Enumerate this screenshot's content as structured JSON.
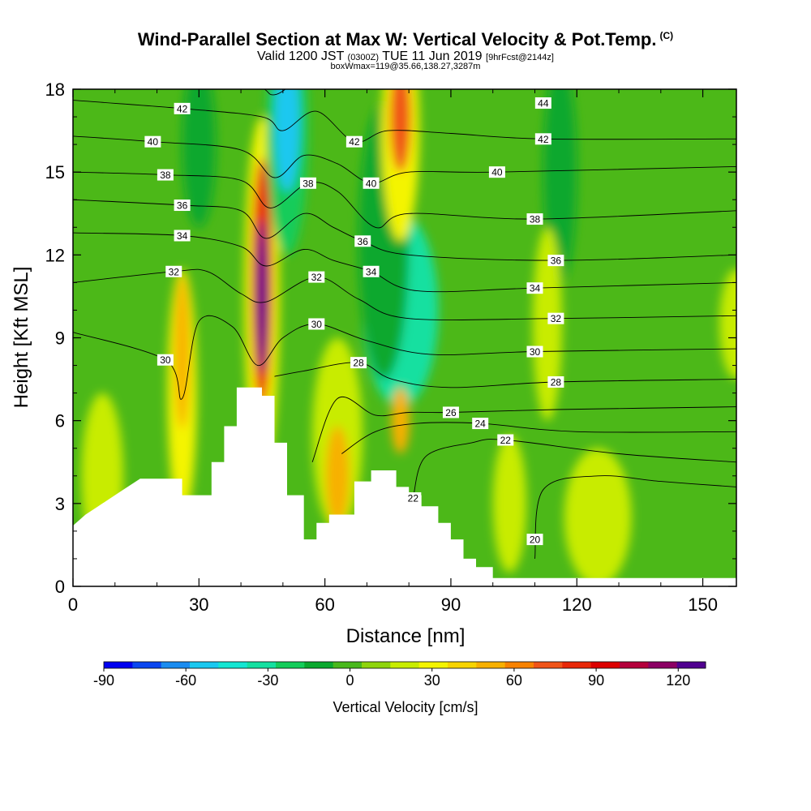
{
  "title": {
    "main": "Wind-Parallel Section at Max W: Vertical Velocity & Pot.Temp.",
    "corner": "(C)",
    "valid_prefix": "Valid 1200 JST",
    "valid_utc": "(0300Z)",
    "valid_date": "TUE 11 Jun 2019",
    "forecast": "[9hrFcst@2144z]",
    "box": "boxWmax=119@35.66,138.27,3287m"
  },
  "colors": {
    "terrain": "#ffffff",
    "base_field": "#4cb818",
    "contour": "#000000"
  },
  "chart_data": {
    "type": "heatmap",
    "xlabel": "Distance [nm]",
    "ylabel": "Height [Kft MSL]",
    "xlim": [
      0,
      158
    ],
    "ylim": [
      0,
      18
    ],
    "x_ticks": [
      0,
      30,
      60,
      90,
      120,
      150
    ],
    "y_ticks": [
      0,
      3,
      6,
      9,
      12,
      15,
      18
    ],
    "terrain_height": [
      [
        0,
        2.2
      ],
      [
        3,
        2.6
      ],
      [
        6,
        2.9
      ],
      [
        9,
        3.2
      ],
      [
        12,
        3.5
      ],
      [
        16,
        3.9
      ],
      [
        26,
        3.9
      ],
      [
        26,
        3.3
      ],
      [
        33,
        3.3
      ],
      [
        33,
        4.5
      ],
      [
        36,
        4.5
      ],
      [
        36,
        5.8
      ],
      [
        39,
        5.8
      ],
      [
        39,
        7.2
      ],
      [
        45,
        7.2
      ],
      [
        45,
        6.9
      ],
      [
        48,
        6.9
      ],
      [
        48,
        5.2
      ],
      [
        51,
        5.2
      ],
      [
        51,
        3.3
      ],
      [
        55,
        3.3
      ],
      [
        55,
        1.7
      ],
      [
        58,
        1.7
      ],
      [
        58,
        2.3
      ],
      [
        61,
        2.3
      ],
      [
        61,
        2.6
      ],
      [
        64,
        2.6
      ],
      [
        64,
        2.6
      ],
      [
        67,
        2.6
      ],
      [
        67,
        3.8
      ],
      [
        71,
        3.8
      ],
      [
        71,
        4.2
      ],
      [
        77,
        4.2
      ],
      [
        77,
        3.6
      ],
      [
        80,
        3.6
      ],
      [
        80,
        3.3
      ],
      [
        83,
        3.3
      ],
      [
        83,
        2.9
      ],
      [
        87,
        2.9
      ],
      [
        87,
        2.3
      ],
      [
        90,
        2.3
      ],
      [
        90,
        1.7
      ],
      [
        93,
        1.7
      ],
      [
        93,
        1.0
      ],
      [
        96,
        1.0
      ],
      [
        96,
        0.7
      ],
      [
        100,
        0.7
      ],
      [
        100,
        0.3
      ],
      [
        158,
        0.3
      ]
    ],
    "vertical_velocity": [
      {
        "x": 45,
        "z": 10.5,
        "dx": 1.3,
        "dz": 2.8,
        "w": 119
      },
      {
        "x": 45,
        "z": 11.0,
        "dx": 2.5,
        "dz": 4.5,
        "w": 70
      },
      {
        "x": 45,
        "z": 10.5,
        "dx": 4.2,
        "dz": 6.5,
        "w": 25
      },
      {
        "x": 78,
        "z": 17.0,
        "dx": 2.5,
        "dz": 2.0,
        "w": 60
      },
      {
        "x": 78,
        "z": 16.5,
        "dx": 4.5,
        "dz": 4.0,
        "w": 25
      },
      {
        "x": 26,
        "z": 8.5,
        "dx": 1.8,
        "dz": 2.8,
        "w": 45
      },
      {
        "x": 26,
        "z": 7.0,
        "dx": 3.5,
        "dz": 4.5,
        "w": 20
      },
      {
        "x": 63,
        "z": 4.0,
        "dx": 2.8,
        "dz": 1.8,
        "w": 40
      },
      {
        "x": 63,
        "z": 5.5,
        "dx": 6.0,
        "dz": 3.5,
        "w": 15
      },
      {
        "x": 78,
        "z": 6.0,
        "dx": 2.2,
        "dz": 1.2,
        "w": 40
      },
      {
        "x": 51,
        "z": 16.8,
        "dx": 3.0,
        "dz": 2.5,
        "w": -60
      },
      {
        "x": 51,
        "z": 16.5,
        "dx": 5.0,
        "dz": 4.5,
        "w": -25
      },
      {
        "x": 78,
        "z": 10.0,
        "dx": 9.0,
        "dz": 3.5,
        "w": -35
      },
      {
        "x": 74,
        "z": 12.5,
        "dx": 6.0,
        "dz": 5.0,
        "w": -18
      },
      {
        "x": 116,
        "z": 15.0,
        "dx": 4.0,
        "dz": 4.0,
        "w": -12
      },
      {
        "x": 30,
        "z": 16.0,
        "dx": 4.0,
        "dz": 3.0,
        "w": -12
      },
      {
        "x": 113,
        "z": 9.5,
        "dx": 3.5,
        "dz": 3.5,
        "w": 15
      },
      {
        "x": 125,
        "z": 2.5,
        "dx": 8.0,
        "dz": 2.5,
        "w": 12
      },
      {
        "x": 104,
        "z": 3.0,
        "dx": 4.0,
        "dz": 2.5,
        "w": 10
      },
      {
        "x": 158,
        "z": 9.5,
        "dx": 4.0,
        "dz": 2.0,
        "w": 10
      },
      {
        "x": 7,
        "z": 4.0,
        "dx": 5.0,
        "dz": 3.0,
        "w": 10
      }
    ],
    "theta_labels": [
      {
        "text": "42",
        "x": 26,
        "y": 17.3
      },
      {
        "text": "40",
        "x": 19,
        "y": 16.1
      },
      {
        "text": "38",
        "x": 22,
        "y": 14.9
      },
      {
        "text": "36",
        "x": 26,
        "y": 13.8
      },
      {
        "text": "34",
        "x": 26,
        "y": 12.7
      },
      {
        "text": "32",
        "x": 24,
        "y": 11.4
      },
      {
        "text": "30",
        "x": 22,
        "y": 8.2
      },
      {
        "text": "38",
        "x": 56,
        "y": 14.6
      },
      {
        "text": "32",
        "x": 58,
        "y": 11.2
      },
      {
        "text": "30",
        "x": 58,
        "y": 9.5
      },
      {
        "text": "42",
        "x": 67,
        "y": 16.1
      },
      {
        "text": "40",
        "x": 71,
        "y": 14.6
      },
      {
        "text": "36",
        "x": 69,
        "y": 12.5
      },
      {
        "text": "34",
        "x": 71,
        "y": 11.4
      },
      {
        "text": "28",
        "x": 68,
        "y": 8.1
      },
      {
        "text": "44",
        "x": 112,
        "y": 17.5
      },
      {
        "text": "42",
        "x": 112,
        "y": 16.2
      },
      {
        "text": "40",
        "x": 101,
        "y": 15.0
      },
      {
        "text": "38",
        "x": 110,
        "y": 13.3
      },
      {
        "text": "36",
        "x": 115,
        "y": 11.8
      },
      {
        "text": "34",
        "x": 110,
        "y": 10.8
      },
      {
        "text": "32",
        "x": 115,
        "y": 9.7
      },
      {
        "text": "30",
        "x": 110,
        "y": 8.5
      },
      {
        "text": "28",
        "x": 115,
        "y": 7.4
      },
      {
        "text": "26",
        "x": 90,
        "y": 6.3
      },
      {
        "text": "24",
        "x": 97,
        "y": 5.9
      },
      {
        "text": "22",
        "x": 103,
        "y": 5.3
      },
      {
        "text": "22",
        "x": 81,
        "y": 3.2
      },
      {
        "text": "20",
        "x": 110,
        "y": 1.7
      }
    ],
    "theta_contours": [
      {
        "level": 44,
        "pts": [
          [
            0,
            18.3
          ],
          [
            40,
            18.2
          ],
          [
            48,
            17.8
          ],
          [
            55,
            18.5
          ],
          [
            60,
            18.2
          ],
          [
            80,
            18.3
          ],
          [
            100,
            18.1
          ],
          [
            158,
            18.2
          ]
        ]
      },
      {
        "level": 42,
        "pts": [
          [
            0,
            17.6
          ],
          [
            26,
            17.3
          ],
          [
            45,
            17.0
          ],
          [
            50,
            16.5
          ],
          [
            58,
            17.2
          ],
          [
            67,
            16.1
          ],
          [
            75,
            16.5
          ],
          [
            90,
            16.4
          ],
          [
            112,
            16.2
          ],
          [
            158,
            16.2
          ]
        ]
      },
      {
        "level": 40,
        "pts": [
          [
            0,
            16.3
          ],
          [
            19,
            16.1
          ],
          [
            40,
            15.8
          ],
          [
            48,
            14.8
          ],
          [
            55,
            15.6
          ],
          [
            63,
            15.3
          ],
          [
            71,
            14.6
          ],
          [
            80,
            15.0
          ],
          [
            101,
            15.0
          ],
          [
            158,
            15.2
          ]
        ]
      },
      {
        "level": 38,
        "pts": [
          [
            0,
            15.0
          ],
          [
            22,
            14.9
          ],
          [
            40,
            14.7
          ],
          [
            47,
            13.7
          ],
          [
            56,
            14.6
          ],
          [
            63,
            14.3
          ],
          [
            72,
            13.0
          ],
          [
            80,
            13.5
          ],
          [
            110,
            13.3
          ],
          [
            158,
            13.6
          ]
        ]
      },
      {
        "level": 36,
        "pts": [
          [
            0,
            14.0
          ],
          [
            26,
            13.8
          ],
          [
            40,
            13.6
          ],
          [
            46,
            12.6
          ],
          [
            55,
            13.5
          ],
          [
            62,
            13.0
          ],
          [
            69,
            12.5
          ],
          [
            80,
            12.0
          ],
          [
            115,
            11.8
          ],
          [
            158,
            12.0
          ]
        ]
      },
      {
        "level": 34,
        "pts": [
          [
            0,
            12.8
          ],
          [
            26,
            12.7
          ],
          [
            40,
            12.3
          ],
          [
            46,
            11.6
          ],
          [
            55,
            12.2
          ],
          [
            62,
            11.8
          ],
          [
            71,
            11.4
          ],
          [
            82,
            10.7
          ],
          [
            110,
            10.8
          ],
          [
            158,
            11.0
          ]
        ]
      },
      {
        "level": 32,
        "pts": [
          [
            0,
            11.0
          ],
          [
            24,
            11.4
          ],
          [
            32,
            11.4
          ],
          [
            40,
            10.6
          ],
          [
            46,
            10.3
          ],
          [
            58,
            11.2
          ],
          [
            68,
            10.4
          ],
          [
            80,
            9.7
          ],
          [
            115,
            9.7
          ],
          [
            158,
            9.8
          ]
        ]
      },
      {
        "level": 30,
        "pts": [
          [
            0,
            9.2
          ],
          [
            22,
            8.2
          ],
          [
            26,
            6.8
          ],
          [
            30,
            9.6
          ],
          [
            38,
            9.4
          ],
          [
            44,
            8.0
          ],
          [
            50,
            9.0
          ],
          [
            58,
            9.5
          ],
          [
            70,
            8.9
          ],
          [
            85,
            8.4
          ],
          [
            110,
            8.5
          ],
          [
            158,
            8.6
          ]
        ]
      },
      {
        "level": 28,
        "pts": [
          [
            48,
            7.6
          ],
          [
            55,
            7.8
          ],
          [
            68,
            8.1
          ],
          [
            76,
            7.5
          ],
          [
            90,
            7.2
          ],
          [
            115,
            7.4
          ],
          [
            158,
            7.5
          ]
        ]
      },
      {
        "level": 26,
        "pts": [
          [
            57,
            4.5
          ],
          [
            63,
            6.8
          ],
          [
            72,
            6.2
          ],
          [
            80,
            6.3
          ],
          [
            90,
            6.3
          ],
          [
            115,
            6.4
          ],
          [
            158,
            6.5
          ]
        ]
      },
      {
        "level": 24,
        "pts": [
          [
            64,
            4.8
          ],
          [
            72,
            5.6
          ],
          [
            82,
            5.9
          ],
          [
            97,
            5.9
          ],
          [
            120,
            5.6
          ],
          [
            158,
            5.6
          ]
        ]
      },
      {
        "level": 22,
        "pts": [
          [
            81,
            3.2
          ],
          [
            84,
            4.7
          ],
          [
            95,
            5.2
          ],
          [
            103,
            5.3
          ],
          [
            130,
            4.8
          ],
          [
            158,
            4.5
          ]
        ]
      },
      {
        "level": 20,
        "pts": [
          [
            110,
            1.0
          ],
          [
            112,
            3.5
          ],
          [
            125,
            4.0
          ],
          [
            140,
            3.8
          ],
          [
            158,
            3.6
          ]
        ]
      }
    ],
    "colorbar": {
      "label": "Vertical Velocity [cm/s]",
      "min": -90,
      "max": 130,
      "step": 10,
      "tick_values": [
        -90,
        -60,
        -30,
        0,
        30,
        60,
        90,
        120
      ],
      "colors": [
        "#0000f0",
        "#0a46f0",
        "#1a8cf0",
        "#1ac8f0",
        "#14e6d2",
        "#14e0a0",
        "#14cc5a",
        "#0aa82e",
        "#48b81c",
        "#8ed40c",
        "#c8ec00",
        "#f4f400",
        "#f8d400",
        "#f8b000",
        "#f88200",
        "#f05418",
        "#e82808",
        "#dc0000",
        "#b4003c",
        "#8c0064",
        "#500090"
      ]
    }
  }
}
